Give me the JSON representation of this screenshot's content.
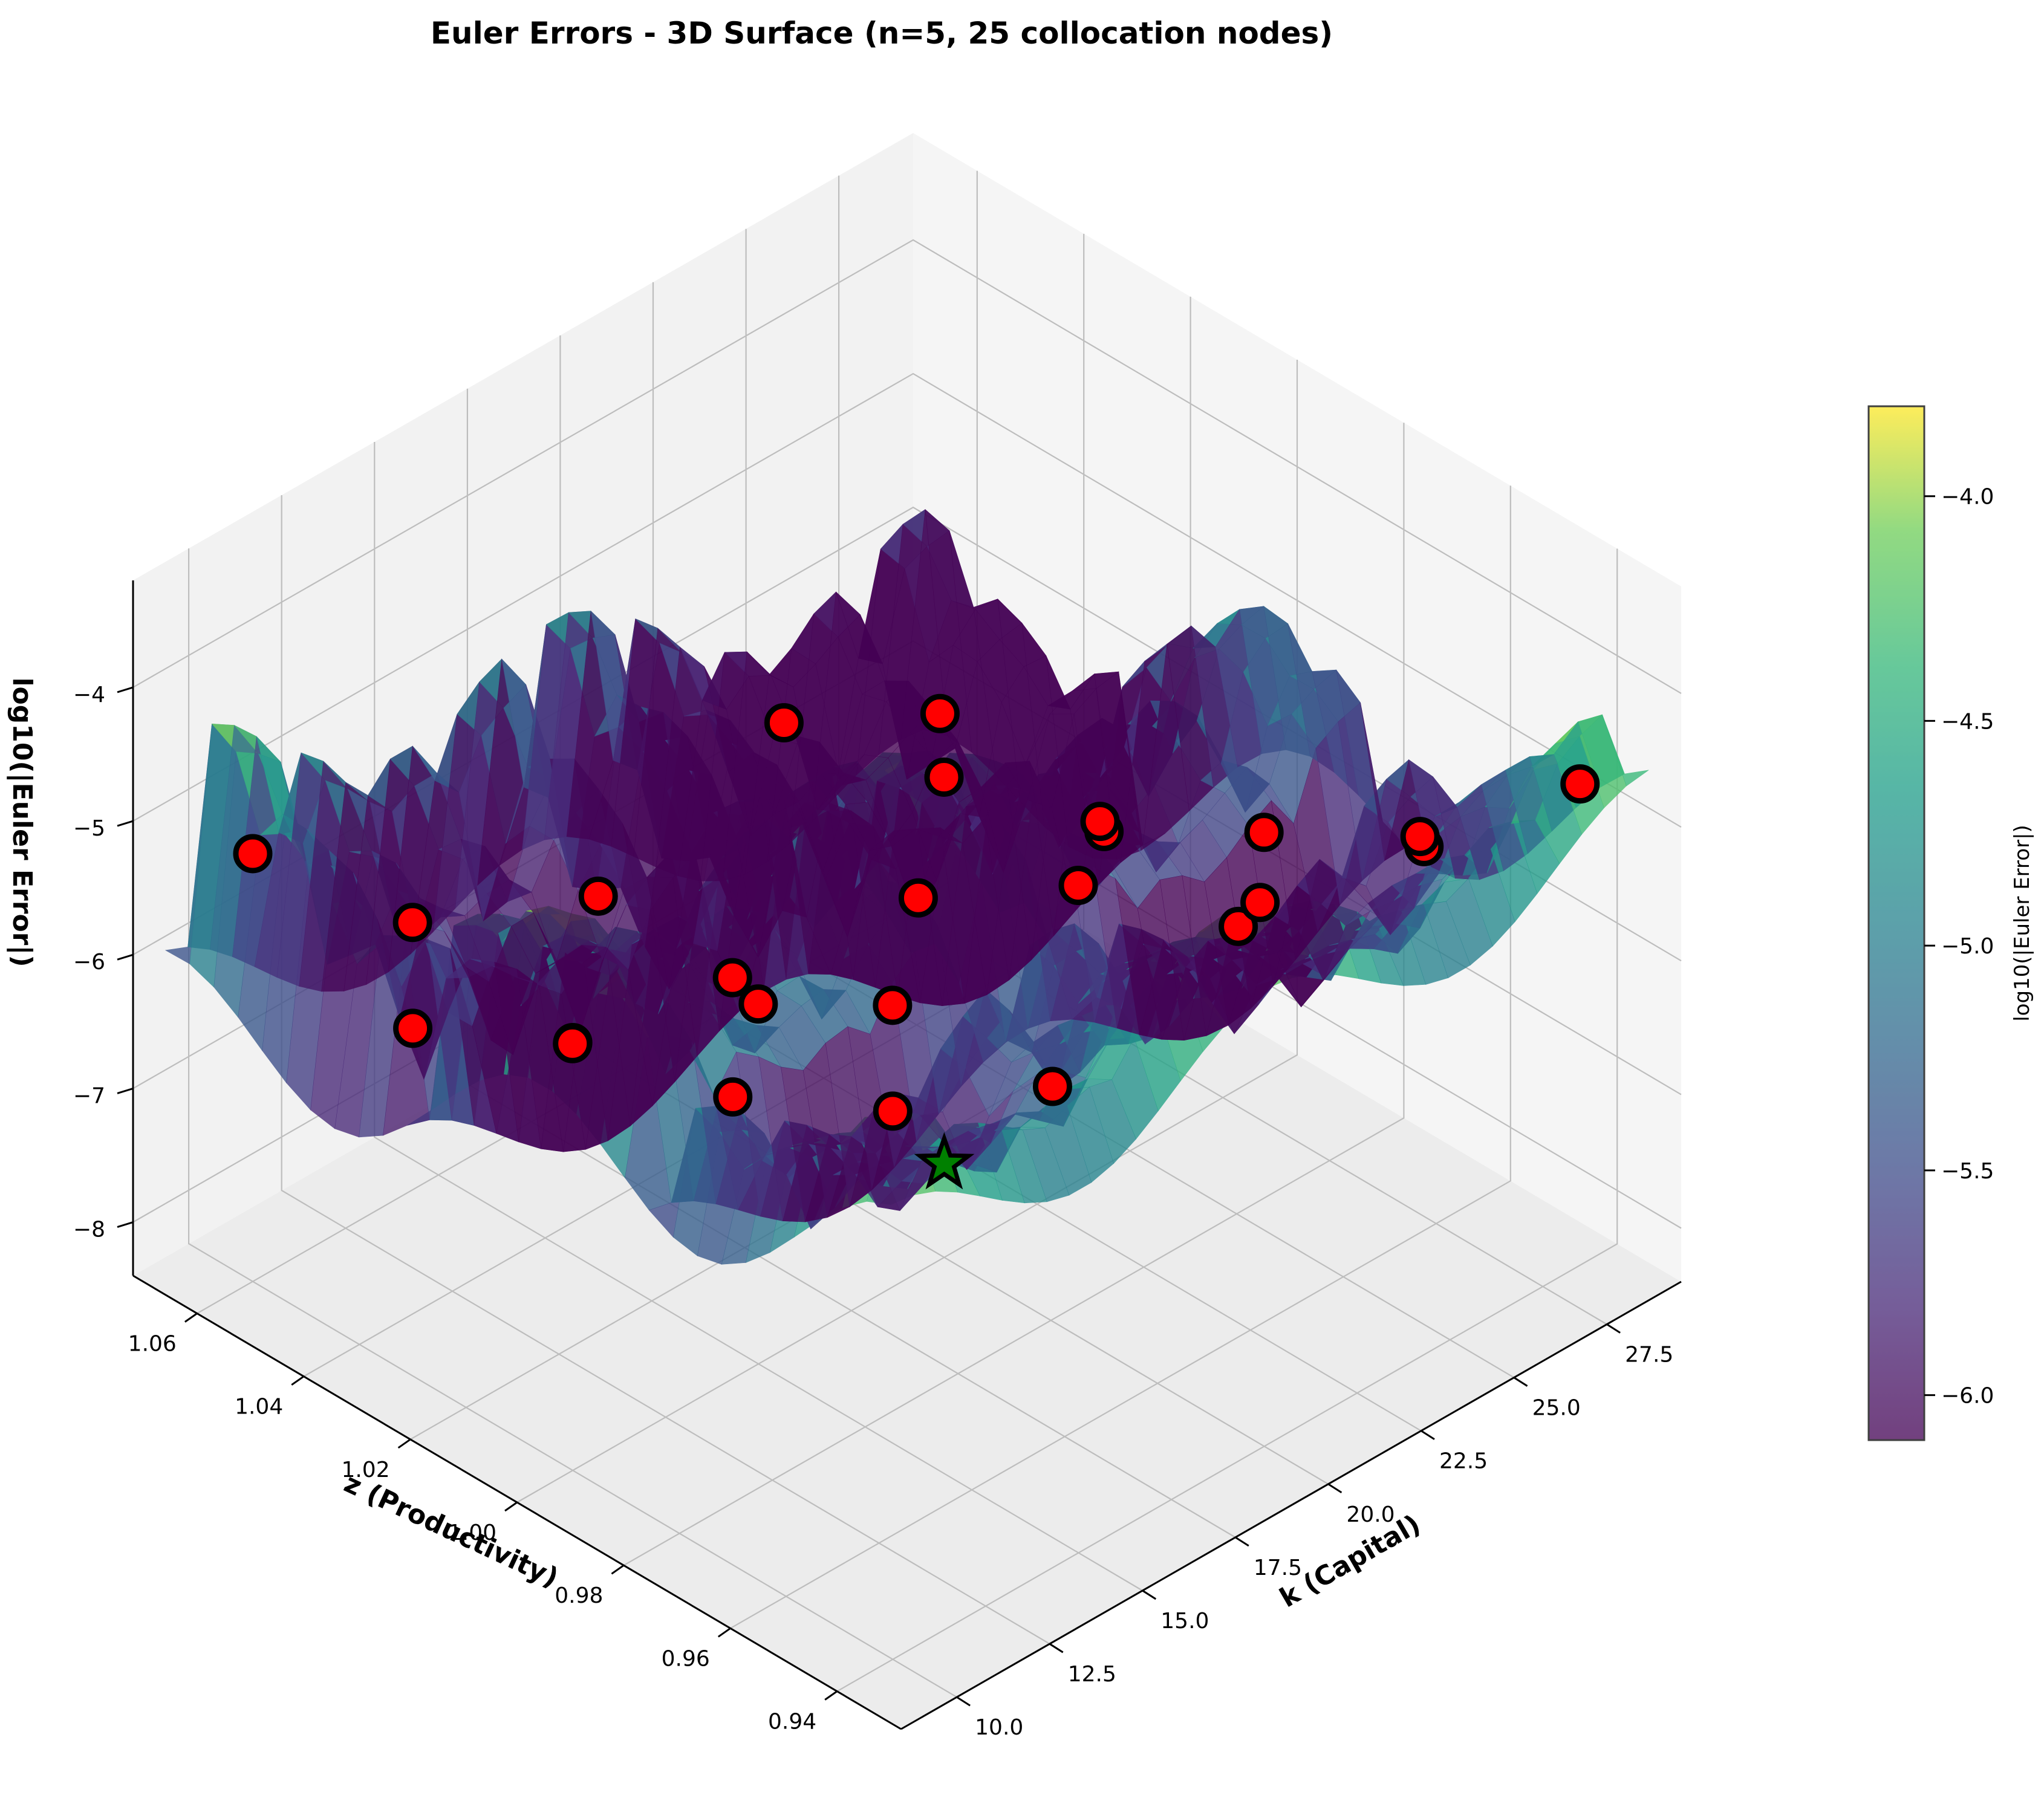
{
  "chart_data": {
    "type": "surface3d",
    "title": "Euler Errors - 3D Surface (n=5, 25 collocation nodes)",
    "xlabel": "k (Capital)",
    "ylabel": "z (Productivity)",
    "zlabel": "log10(|Euler Error|)",
    "colorbar_label": "log10(|Euler Error|)",
    "colormap": "viridis",
    "xlim": [
      8.5,
      29.5
    ],
    "ylim": [
      0.928,
      1.072
    ],
    "zlim": [
      -8.4,
      -3.2
    ],
    "x_ticks": [
      10.0,
      12.5,
      15.0,
      17.5,
      20.0,
      22.5,
      25.0,
      27.5
    ],
    "x_tick_labels": [
      "10.0",
      "12.5",
      "15.0",
      "17.5",
      "20.0",
      "22.5",
      "25.0",
      "27.5"
    ],
    "y_ticks": [
      0.94,
      0.96,
      0.98,
      1.0,
      1.02,
      1.04,
      1.06
    ],
    "y_tick_labels": [
      "0.94",
      "0.96",
      "0.98",
      "1.00",
      "1.02",
      "1.04",
      "1.06"
    ],
    "z_ticks": [
      -8,
      -7,
      -6,
      -5,
      -4
    ],
    "z_tick_labels": [
      "−8",
      "−7",
      "−6",
      "−5",
      "−4"
    ],
    "colorbar_ticks": [
      -6.0,
      -5.5,
      -5.0,
      -4.5,
      -4.0
    ],
    "colorbar_tick_labels": [
      "−6.0",
      "−5.5",
      "−5.0",
      "−4.5",
      "−4.0"
    ],
    "colorbar_range": [
      -6.1,
      -3.8
    ],
    "grid": true,
    "collocation_nodes": [
      {
        "k": 10.0,
        "z": 0.94,
        "log_error": -4.3
      },
      {
        "k": 14.3,
        "z": 0.94,
        "log_error": -4.8
      },
      {
        "k": 19.3,
        "z": 0.94,
        "log_error": -4.4
      },
      {
        "k": 24.3,
        "z": 0.94,
        "log_error": -4.6
      },
      {
        "k": 28.5,
        "z": 0.94,
        "log_error": -4.8
      },
      {
        "k": 10.0,
        "z": 0.97,
        "log_error": -4.9
      },
      {
        "k": 14.3,
        "z": 0.97,
        "log_error": -4.9
      },
      {
        "k": 19.3,
        "z": 0.97,
        "log_error": -4.8
      },
      {
        "k": 24.3,
        "z": 0.97,
        "log_error": -5.2
      },
      {
        "k": 28.5,
        "z": 0.97,
        "log_error": -5.9
      },
      {
        "k": 10.0,
        "z": 1.0,
        "log_error": -5.2
      },
      {
        "k": 14.3,
        "z": 1.0,
        "log_error": -5.4
      },
      {
        "k": 19.3,
        "z": 1.0,
        "log_error": -5.6
      },
      {
        "k": 24.3,
        "z": 1.0,
        "log_error": -5.9
      },
      {
        "k": 28.5,
        "z": 1.0,
        "log_error": -7.1
      },
      {
        "k": 10.0,
        "z": 1.03,
        "log_error": -5.8
      },
      {
        "k": 14.3,
        "z": 1.03,
        "log_error": -6.6
      },
      {
        "k": 19.3,
        "z": 1.03,
        "log_error": -7.1
      },
      {
        "k": 24.3,
        "z": 1.03,
        "log_error": -6.2
      },
      {
        "k": 28.5,
        "z": 1.03,
        "log_error": -7.2
      },
      {
        "k": 10.0,
        "z": 1.06,
        "log_error": -5.2
      },
      {
        "k": 14.3,
        "z": 1.06,
        "log_error": -6.4
      },
      {
        "k": 19.3,
        "z": 1.06,
        "log_error": -7.0
      },
      {
        "k": 24.3,
        "z": 1.06,
        "log_error": -6.5
      },
      {
        "k": 28.5,
        "z": 1.06,
        "log_error": -7.1
      }
    ],
    "steady_state": {
      "k": 20.0,
      "z": 1.0,
      "log_error": -7.7
    }
  }
}
